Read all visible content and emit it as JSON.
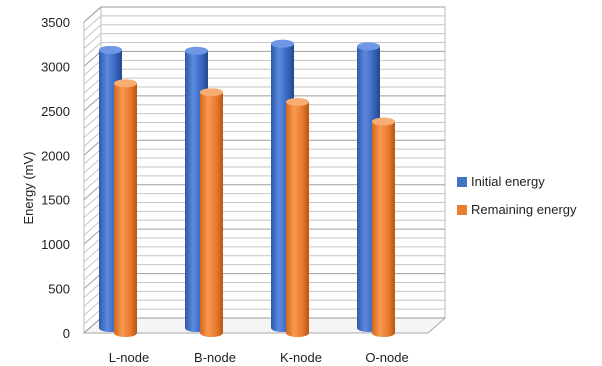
{
  "chart_data": {
    "type": "bar",
    "style": "3d-clustered-cylinder",
    "ylabel": "Energy (mV)",
    "xlabel": "",
    "title": "",
    "categories": [
      "L-node",
      "B-node",
      "K-node",
      "O-node"
    ],
    "ylim": [
      0,
      3500
    ],
    "yticks": [
      0,
      500,
      1000,
      1500,
      2000,
      2500,
      3000,
      3500
    ],
    "ytick_labels": [
      "0",
      "500",
      "1000",
      "1500",
      "2000",
      "2500",
      "3000",
      "3500"
    ],
    "grid": true,
    "legend_position": "right",
    "series": [
      {
        "name": "Initial energy",
        "color": "#4472C4",
        "values": [
          3130,
          3120,
          3200,
          3170
        ]
      },
      {
        "name": "Remaining energy",
        "color": "#ED7D31",
        "values": [
          2810,
          2710,
          2600,
          2380
        ]
      }
    ]
  }
}
